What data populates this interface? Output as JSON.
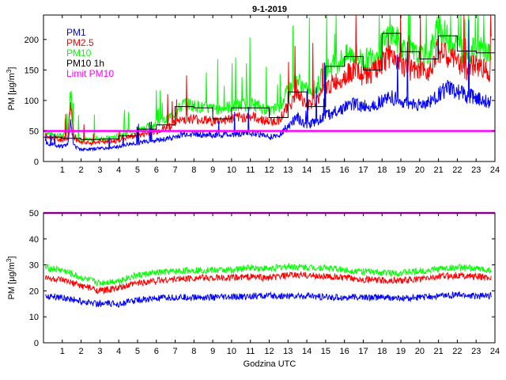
{
  "title": "9-1-2019",
  "chart_data": [
    {
      "type": "line",
      "panel": "top",
      "title": "9-1-2019",
      "ylabel": "PM [µg/m³]",
      "ylabel_text": "PM [µg/m",
      "ylabel_sup": "3",
      "ylabel_end": "]",
      "xlabel": "",
      "xlim": [
        0,
        24
      ],
      "ylim": [
        0,
        240
      ],
      "xticks": [
        1,
        2,
        3,
        4,
        5,
        6,
        7,
        8,
        9,
        10,
        11,
        12,
        13,
        14,
        15,
        16,
        17,
        18,
        19,
        20,
        21,
        22,
        23,
        24
      ],
      "yticks": [
        0,
        50,
        100,
        150,
        200
      ],
      "legend": [
        {
          "label": "PM1",
          "color": "#0000ff"
        },
        {
          "label": "PM2.5",
          "color": "#ff0000"
        },
        {
          "label": "PM10",
          "color": "#00ff00"
        },
        {
          "label": "PM10 1h",
          "color": "#000000"
        },
        {
          "label": "Limit PM10",
          "color": "#ff00ff"
        }
      ],
      "legend_position": "top-left",
      "series": [
        {
          "name": "PM1",
          "color": "#0000ff",
          "x": [
            0.1,
            0.5,
            1,
            1.3,
            1.45,
            1.6,
            2,
            2.5,
            3,
            3.5,
            4,
            4.5,
            5,
            5.5,
            6,
            6.5,
            7,
            7.5,
            8,
            8.5,
            9,
            9.5,
            10,
            10.5,
            11,
            11.5,
            12,
            12.5,
            13,
            13.5,
            14,
            14.5,
            15,
            15.5,
            16,
            16.5,
            17,
            17.5,
            18,
            18.5,
            19,
            19.5,
            20,
            20.5,
            21,
            21.5,
            22,
            22.5,
            23,
            23.5,
            23.8
          ],
          "values": [
            32,
            27,
            25,
            28,
            70,
            26,
            20,
            20,
            22,
            22,
            24,
            28,
            30,
            33,
            35,
            37,
            40,
            45,
            45,
            44,
            43,
            44,
            44,
            46,
            47,
            45,
            40,
            43,
            58,
            72,
            60,
            65,
            75,
            82,
            88,
            95,
            90,
            92,
            100,
            105,
            98,
            95,
            92,
            96,
            110,
            120,
            115,
            108,
            105,
            100,
            98
          ]
        },
        {
          "name": "PM2.5",
          "color": "#ff0000",
          "x": [
            0.1,
            0.5,
            1,
            1.3,
            1.45,
            1.6,
            2,
            2.5,
            3,
            3.5,
            4,
            4.5,
            5,
            5.5,
            6,
            6.5,
            7,
            7.5,
            8,
            8.5,
            9,
            9.5,
            10,
            10.5,
            11,
            11.5,
            12,
            12.5,
            13,
            13.5,
            14,
            14.5,
            15,
            15.5,
            16,
            16.5,
            17,
            17.5,
            18,
            18.5,
            19,
            19.5,
            20,
            20.5,
            21,
            21.5,
            22,
            22.5,
            23,
            23.5,
            23.8
          ],
          "values": [
            42,
            38,
            36,
            40,
            100,
            38,
            30,
            30,
            32,
            32,
            35,
            40,
            42,
            46,
            50,
            55,
            62,
            70,
            70,
            68,
            66,
            68,
            70,
            72,
            74,
            70,
            65,
            68,
            90,
            110,
            92,
            100,
            120,
            130,
            140,
            150,
            140,
            145,
            160,
            175,
            160,
            150,
            145,
            150,
            185,
            170,
            165,
            150,
            160,
            150,
            148
          ]
        },
        {
          "name": "PM10",
          "color": "#00ff00",
          "x": [
            0.1,
            0.5,
            1,
            1.3,
            1.45,
            1.6,
            2,
            2.5,
            3,
            3.5,
            4,
            4.5,
            5,
            5.5,
            6,
            6.5,
            7,
            7.5,
            8,
            8.5,
            9,
            9.5,
            10,
            10.5,
            11,
            11.5,
            12,
            12.5,
            13,
            13.5,
            14,
            14.5,
            15,
            15.5,
            16,
            16.5,
            17,
            17.5,
            18,
            18.5,
            19,
            19.5,
            20,
            20.5,
            21,
            21.5,
            22,
            22.5,
            23,
            23.5,
            23.8
          ],
          "values": [
            48,
            44,
            42,
            46,
            120,
            44,
            36,
            35,
            38,
            38,
            42,
            48,
            52,
            56,
            62,
            68,
            80,
            95,
            92,
            88,
            86,
            88,
            90,
            92,
            95,
            90,
            82,
            88,
            115,
            135,
            115,
            120,
            150,
            160,
            170,
            178,
            165,
            170,
            190,
            210,
            190,
            180,
            170,
            175,
            220,
            200,
            190,
            175,
            185,
            180,
            175
          ]
        },
        {
          "name": "PM10 1h",
          "color": "#000000",
          "step": true,
          "x": [
            0,
            1,
            2,
            3,
            4,
            5,
            6,
            7,
            8,
            9,
            10,
            11,
            12,
            13,
            14,
            15,
            16,
            17,
            18,
            19,
            20,
            21,
            22,
            23
          ],
          "values": [
            40,
            38,
            36,
            37,
            42,
            53,
            60,
            90,
            88,
            70,
            88,
            88,
            72,
            114,
            90,
            156,
            172,
            150,
            210,
            180,
            168,
            206,
            181,
            178
          ]
        },
        {
          "name": "Limit PM10",
          "color": "#ff00ff",
          "x": [
            0,
            24
          ],
          "values": [
            50,
            50
          ]
        }
      ]
    },
    {
      "type": "line",
      "panel": "bottom",
      "title": "",
      "ylabel": "PM [µg/m³]",
      "ylabel_text": "PM [µg/m",
      "ylabel_sup": "3",
      "ylabel_end": "]",
      "xlabel": "Godzina UTC",
      "xlim": [
        0,
        24
      ],
      "ylim": [
        0,
        50
      ],
      "xticks": [
        1,
        2,
        3,
        4,
        5,
        6,
        7,
        8,
        9,
        10,
        11,
        12,
        13,
        14,
        15,
        16,
        17,
        18,
        19,
        20,
        21,
        22,
        23,
        24
      ],
      "yticks": [
        0,
        10,
        20,
        30,
        40,
        50
      ],
      "series": [
        {
          "name": "PM1",
          "color": "#0000ff",
          "x": [
            0.1,
            1,
            2,
            3,
            4,
            5,
            6,
            7,
            8,
            9,
            10,
            11,
            12,
            13,
            14,
            15,
            16,
            17,
            18,
            19,
            20,
            21,
            22,
            23,
            23.8
          ],
          "values": [
            18,
            17.5,
            16,
            15,
            15,
            16.5,
            17,
            17.5,
            17.5,
            17.5,
            17.5,
            18,
            18,
            18,
            18,
            17.5,
            17.5,
            17.5,
            17.5,
            17,
            17.5,
            18,
            18.5,
            18,
            18
          ]
        },
        {
          "name": "PM2.5",
          "color": "#ff0000",
          "x": [
            0.1,
            1,
            2,
            3,
            4,
            5,
            6,
            7,
            8,
            9,
            10,
            11,
            12,
            13,
            14,
            15,
            16,
            17,
            18,
            19,
            20,
            21,
            22,
            23,
            23.8
          ],
          "values": [
            25,
            24,
            22,
            20,
            21,
            23,
            24,
            24.5,
            25,
            25,
            25,
            25.5,
            25,
            26,
            26,
            25.5,
            25,
            24.5,
            24,
            24,
            24.5,
            25.5,
            26,
            25.5,
            25
          ]
        },
        {
          "name": "PM10",
          "color": "#00ff00",
          "x": [
            0.1,
            1,
            2,
            3,
            4,
            5,
            6,
            7,
            8,
            9,
            10,
            11,
            12,
            13,
            14,
            15,
            16,
            17,
            18,
            19,
            20,
            21,
            22,
            23,
            23.8
          ],
          "values": [
            29,
            28,
            25,
            23,
            24,
            26,
            27,
            27.5,
            28,
            28,
            28,
            29,
            28.5,
            29.5,
            29,
            29,
            28,
            27.5,
            27,
            27,
            27.5,
            28.5,
            29,
            28.5,
            28
          ]
        },
        {
          "name": "Limit PM10",
          "color": "#ff00ff",
          "x": [
            0,
            24
          ],
          "values": [
            50,
            50
          ]
        }
      ]
    }
  ]
}
